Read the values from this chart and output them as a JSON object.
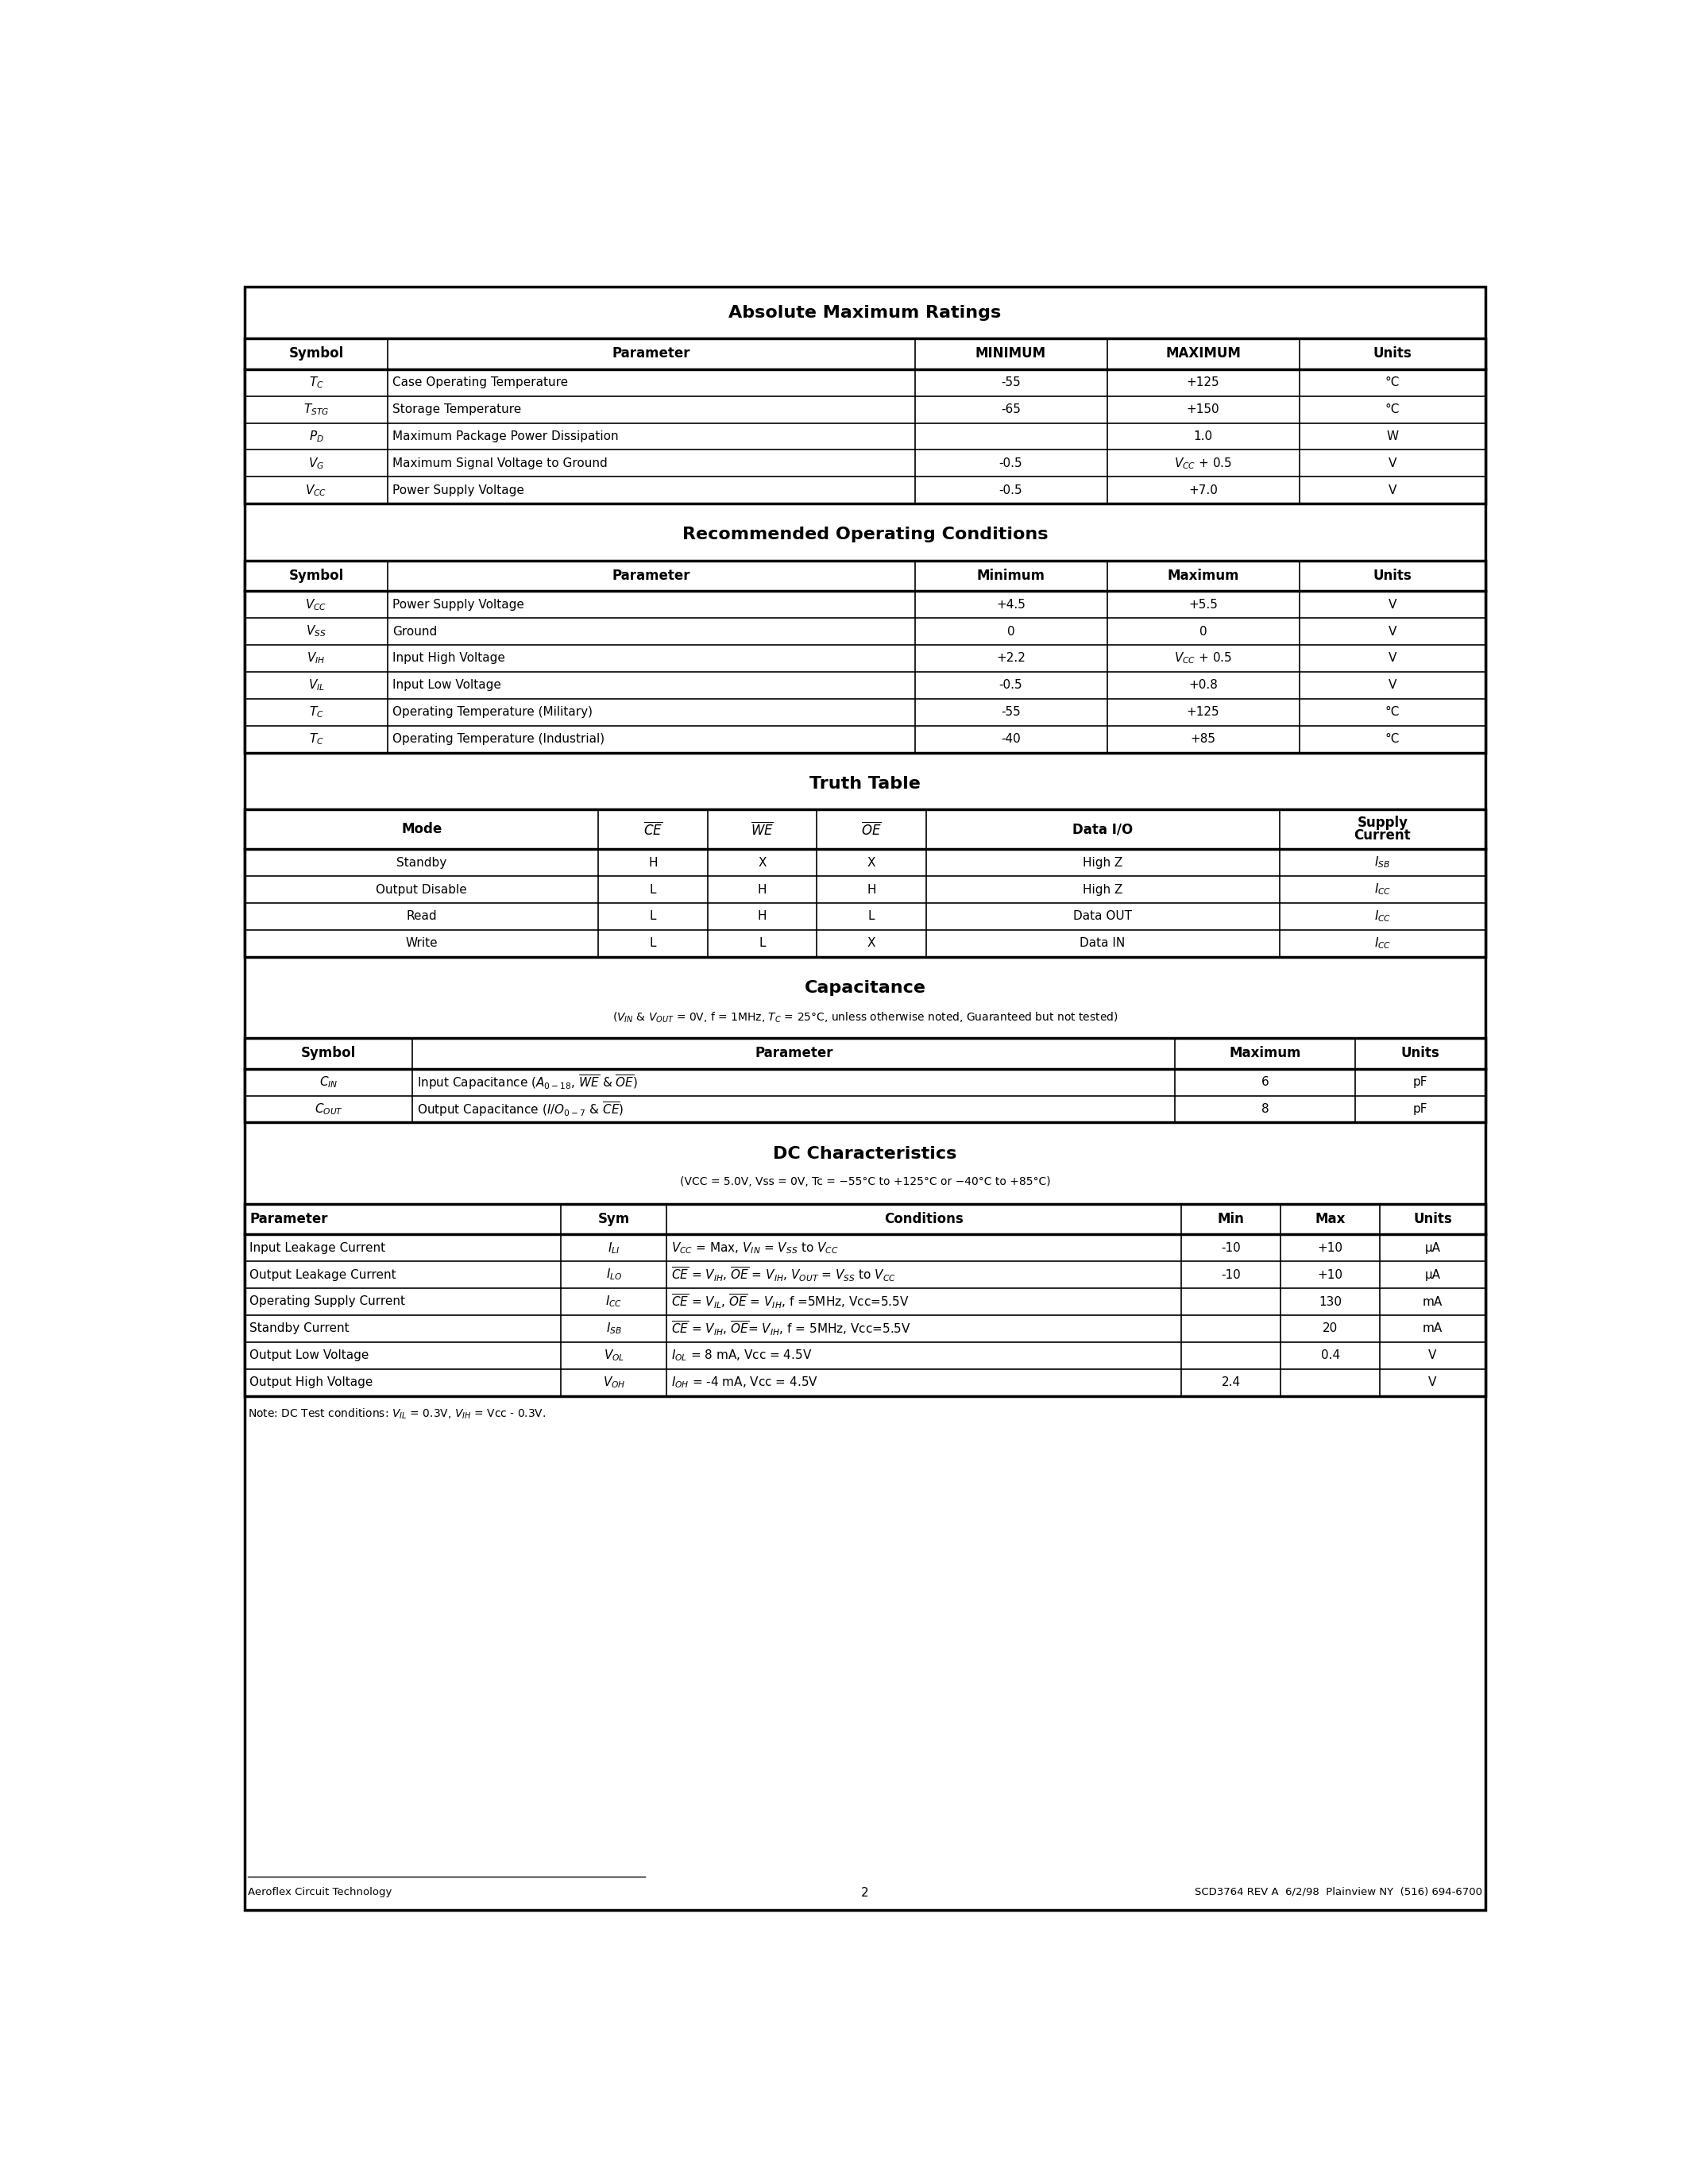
{
  "page_bg": "#ffffff",
  "table1_title": "Absolute Maximum Ratings",
  "table1_headers": [
    "Symbol",
    "Parameter",
    "MINIMUM",
    "MAXIMUM",
    "Units"
  ],
  "table2_title": "Recommended Operating Conditions",
  "table2_headers": [
    "Symbol",
    "Parameter",
    "Minimum",
    "Maximum",
    "Units"
  ],
  "table3_title": "Truth Table",
  "table3_headers": [
    "Mode",
    "CE",
    "WE",
    "OE",
    "Data I/O",
    "Supply\nCurrent"
  ],
  "table4_title": "Capacitance",
  "table4_subtitle": "(Vᴵₙ & Vᴺut = 0V, f = 1MHz, Tᴄ = 25°C, unless otherwise noted, Guaranteed but not tested)",
  "table5_title": "DC Characteristics",
  "table5_subtitle": "(VCC = 5.0V, Vss = 0V, Tc = -55°C to +125°C or -40°C to +85°C)",
  "table5_headers": [
    "Parameter",
    "Sym",
    "Conditions",
    "Min",
    "Max",
    "Units"
  ],
  "footer_left": "Aeroflex Circuit Technology",
  "footer_center": "2",
  "footer_right": "SCD3764 REV A  6/2/98  Plainview NY  (516) 694-6700"
}
